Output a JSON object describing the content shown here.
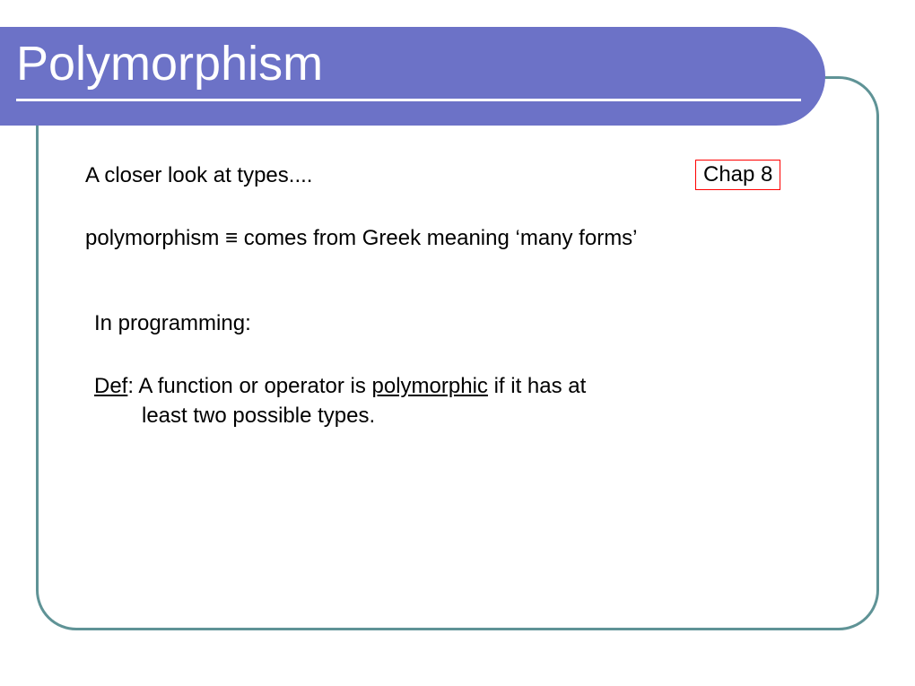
{
  "colors": {
    "titlebar_bg": "#6c72c7",
    "frame_border": "#5f9396",
    "badge_border": "#ff0000"
  },
  "title": "Polymorphism",
  "subtitle": "A closer look at types....",
  "chapter_badge": "Chap 8",
  "etymology_pre": "polymorphism ",
  "equiv_symbol": "≡",
  "etymology_post": " comes from Greek meaning ‘many forms’",
  "section_intro": "In programming:",
  "def_label": "Def",
  "def_part1": ": A function or operator is ",
  "poly_word": "polymorphic",
  "def_part2": " if it has at",
  "def_line2": "least two possible types."
}
